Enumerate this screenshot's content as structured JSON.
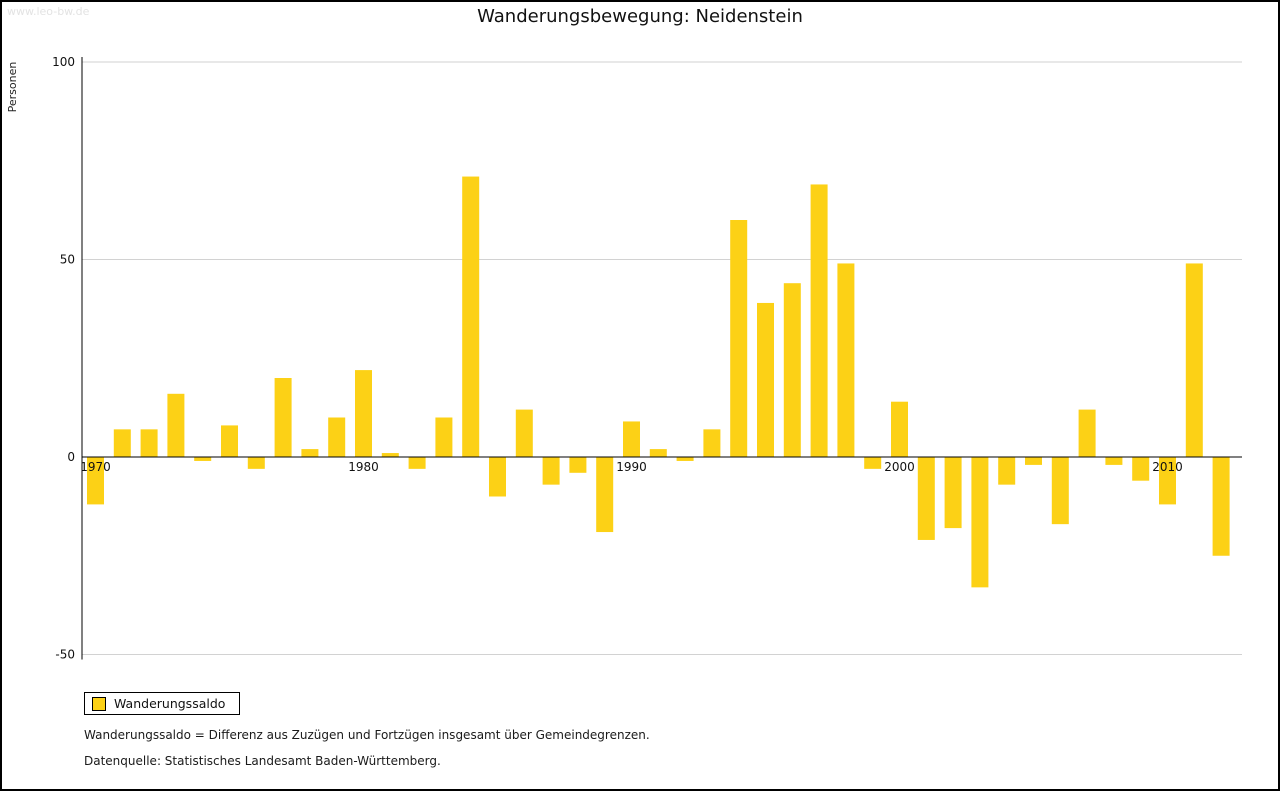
{
  "watermark": "www.leo-bw.de",
  "title": "Wanderungsbewegung: Neidenstein",
  "ylabel": "Personen",
  "legend": {
    "label": "Wanderungssaldo"
  },
  "footnotes": [
    "Wanderungssaldo = Differenz aus Zuzügen und Fortzügen insgesamt über Gemeindegrenzen.",
    "Datenquelle: Statistisches Landesamt Baden-Württemberg."
  ],
  "chart_data": {
    "type": "bar",
    "title": "Wanderungsbewegung: Neidenstein",
    "ylabel": "Personen",
    "series_name": "Wanderungssaldo",
    "bar_color": "#FCD116",
    "ylim": [
      -50,
      100
    ],
    "yticks": [
      100,
      50,
      0,
      -50
    ],
    "xticks": [
      1970,
      1980,
      1990,
      2000,
      2010
    ],
    "years": [
      1970,
      1971,
      1972,
      1973,
      1974,
      1975,
      1976,
      1977,
      1978,
      1979,
      1980,
      1981,
      1982,
      1983,
      1984,
      1985,
      1986,
      1987,
      1988,
      1989,
      1990,
      1991,
      1992,
      1993,
      1994,
      1995,
      1996,
      1997,
      1998,
      1999,
      2000,
      2001,
      2002,
      2003,
      2004,
      2005,
      2006,
      2007,
      2008,
      2009,
      2010,
      2011,
      2012
    ],
    "values": [
      -12,
      7,
      7,
      16,
      -1,
      8,
      -3,
      20,
      2,
      10,
      22,
      1,
      -3,
      10,
      71,
      -10,
      12,
      -7,
      -4,
      -19,
      9,
      2,
      -1,
      7,
      60,
      39,
      44,
      69,
      49,
      -3,
      14,
      -21,
      -18,
      -33,
      -7,
      -2,
      -17,
      12,
      -2,
      -6,
      -12,
      49,
      -25
    ],
    "grid_color": "#d2d2d2",
    "axis_color": "#000000"
  }
}
